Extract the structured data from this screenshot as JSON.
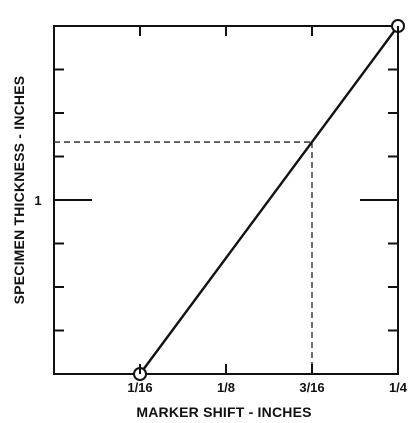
{
  "chart_data": {
    "type": "line",
    "title": "",
    "xlabel": "MARKER SHIFT - INCHES",
    "ylabel": "SPECIMEN THICKNESS - INCHES",
    "x_ticks": [
      {
        "value": 0.0625,
        "label": "1/16"
      },
      {
        "value": 0.125,
        "label": "1/8"
      },
      {
        "value": 0.1875,
        "label": "3/16"
      },
      {
        "value": 0.25,
        "label": "1/4"
      }
    ],
    "y_ticks": [
      {
        "value": 1,
        "label": "1"
      }
    ],
    "x_minor_ticks": [
      0.0625,
      0.125,
      0.1875,
      0.25
    ],
    "y_minor_ticks": [
      0.25,
      0.5,
      0.75,
      1.0,
      1.25,
      1.5,
      1.75
    ],
    "xlim": [
      0,
      0.25
    ],
    "ylim": [
      0,
      2
    ],
    "series": [
      {
        "x": [
          0.0625,
          0.25
        ],
        "y": [
          0,
          2
        ],
        "markers": "hollow-circle-endpoints"
      }
    ],
    "reference_point": {
      "x": 0.1875,
      "y": 1.333,
      "style": "dashed"
    },
    "grid": false,
    "colors": {
      "line": "#111111",
      "axis": "#111111",
      "dash": "#222222",
      "background": "#ffffff"
    }
  }
}
